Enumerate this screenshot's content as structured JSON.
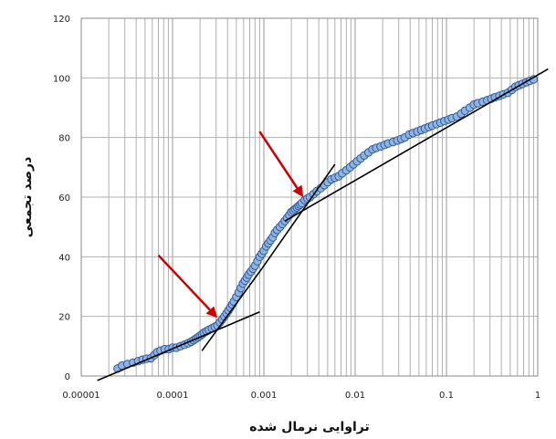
{
  "chart_data": {
    "type": "scatter",
    "x_scale": "log",
    "xlim": [
      1e-05,
      1
    ],
    "ylim": [
      0,
      120
    ],
    "x_tick_labels": [
      "0.00001",
      "0.0001",
      "0.001",
      "0.01",
      "0.1",
      "1"
    ],
    "y_tick_labels": [
      "0",
      "20",
      "40",
      "60",
      "80",
      "100",
      "120"
    ],
    "xlabel": "تراوایی نرمال شده",
    "ylabel": "درصد تجمعی",
    "grid": true,
    "colors": {
      "marker_fill": "#8fb4e3",
      "marker_stroke": "#2e5c9a",
      "trend_line": "#000000",
      "arrow": "#cc0000",
      "grid": "#b0b0b0",
      "frame": "#888888"
    },
    "series": [
      {
        "x": [
          2.5e-05,
          2.8e-05,
          3.2e-05,
          3.7e-05,
          4.2e-05,
          4.7e-05,
          5.2e-05,
          5.8e-05,
          6.3e-05,
          6.8e-05,
          7.4e-05,
          8.2e-05,
          9.1e-05,
          0.0001,
          0.00011,
          0.000122,
          0.000135,
          0.000148,
          0.00016,
          0.00017,
          0.00018,
          0.00019,
          0.0002,
          0.00021,
          0.00022,
          0.000235,
          0.00025,
          0.00027,
          0.00029,
          0.00031,
          0.00033,
          0.00035,
          0.00037,
          0.00039,
          0.00041,
          0.00043,
          0.00045,
          0.00047,
          0.0005,
          0.00053,
          0.00056,
          0.00059,
          0.00062,
          0.00065,
          0.00068,
          0.00072,
          0.00076,
          0.0008,
          0.00085,
          0.0009,
          0.00095,
          0.001,
          0.00106,
          0.00112,
          0.00118,
          0.00125,
          0.00132,
          0.0014,
          0.0015,
          0.0016,
          0.0017,
          0.0018,
          0.0019,
          0.002,
          0.0021,
          0.0022,
          0.0023,
          0.0024,
          0.0025,
          0.0026,
          0.0028,
          0.003,
          0.0032,
          0.0035,
          0.0038,
          0.0042,
          0.0046,
          0.005,
          0.0055,
          0.006,
          0.0066,
          0.0072,
          0.008,
          0.0088,
          0.0096,
          0.0105,
          0.0115,
          0.0126,
          0.014,
          0.0155,
          0.017,
          0.019,
          0.021,
          0.023,
          0.026,
          0.029,
          0.032,
          0.035,
          0.039,
          0.043,
          0.048,
          0.053,
          0.058,
          0.064,
          0.07,
          0.078,
          0.086,
          0.095,
          0.105,
          0.115,
          0.13,
          0.145,
          0.16,
          0.18,
          0.2,
          0.22,
          0.25,
          0.28,
          0.31,
          0.34,
          0.38,
          0.42,
          0.47,
          0.52,
          0.57,
          0.62,
          0.68,
          0.75,
          0.82,
          0.9
        ],
        "y": [
          2.5,
          3.5,
          4.0,
          4.5,
          5.0,
          5.5,
          5.8,
          6.0,
          7.0,
          8.0,
          8.5,
          9.0,
          9.0,
          9.5,
          9.5,
          10.0,
          10.5,
          11.0,
          11.5,
          12.0,
          12.5,
          13.0,
          13.5,
          14.0,
          14.5,
          15.0,
          15.5,
          16.0,
          16.5,
          17.0,
          18.0,
          19.0,
          20.0,
          21.0,
          22.0,
          23.0,
          24.0,
          25.0,
          26.5,
          28.0,
          29.5,
          31.0,
          32.0,
          33.0,
          34.0,
          35.0,
          36.0,
          37.0,
          38.5,
          40.0,
          41.0,
          42.0,
          43.5,
          44.5,
          45.5,
          46.5,
          48.0,
          49.0,
          50.0,
          51.0,
          52.0,
          53.0,
          54.0,
          55.0,
          55.5,
          56.0,
          56.5,
          57.0,
          57.5,
          58.0,
          59.0,
          59.5,
          60.0,
          61.0,
          62.0,
          63.0,
          64.0,
          65.0,
          66.0,
          66.5,
          67.0,
          68.0,
          69.0,
          70.0,
          71.0,
          72.0,
          73.0,
          74.0,
          75.0,
          76.0,
          76.5,
          77.0,
          77.5,
          78.0,
          78.5,
          79.0,
          79.5,
          80.0,
          81.0,
          81.5,
          82.0,
          82.5,
          83.0,
          83.5,
          84.0,
          84.5,
          85.0,
          85.5,
          86.0,
          86.5,
          87.0,
          88.0,
          89.0,
          90.0,
          91.0,
          91.5,
          92.0,
          92.5,
          93.0,
          93.5,
          94.0,
          94.5,
          95.0,
          96.0,
          97.0,
          97.5,
          98.0,
          98.5,
          99.0,
          99.5
        ]
      }
    ],
    "trend_lines": [
      {
        "x": [
          1.5e-05,
          0.0009
        ],
        "y": [
          -1.5,
          21.5
        ]
      },
      {
        "x": [
          0.00021,
          0.00095
        ],
        "y": [
          8.5,
          36.0
        ]
      },
      {
        "x": [
          0.00095,
          0.006
        ],
        "y": [
          36.0,
          71.0
        ]
      },
      {
        "x": [
          0.0017,
          1.3
        ],
        "y": [
          52.0,
          103.0
        ]
      }
    ],
    "arrows": [
      {
        "from": [
          7e-05,
          40.5
        ],
        "to": [
          0.00031,
          19.5
        ]
      },
      {
        "from": [
          0.0009,
          82.0
        ],
        "to": [
          0.0027,
          60.0
        ]
      }
    ]
  }
}
